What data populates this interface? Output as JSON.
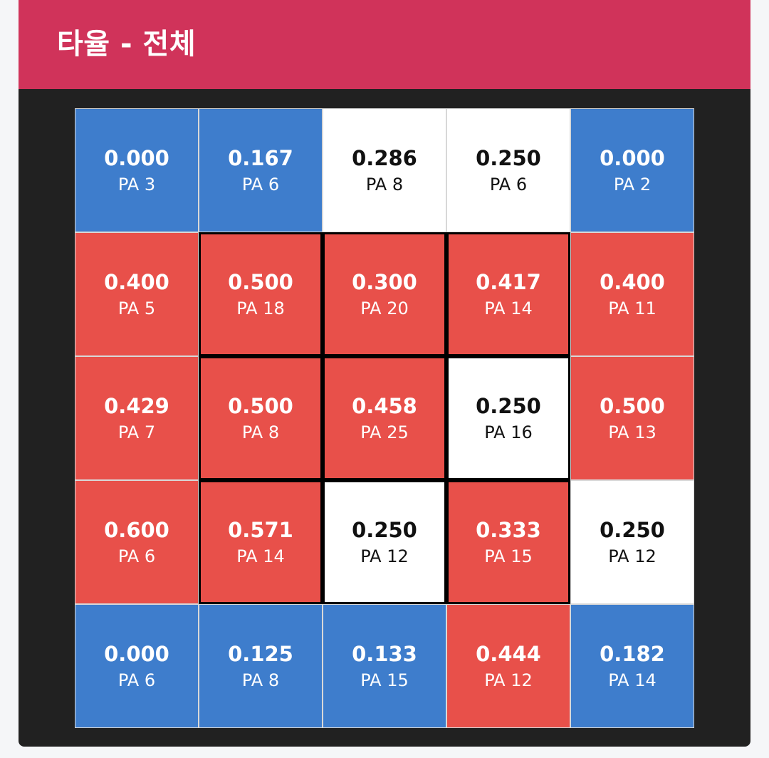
{
  "header": {
    "title": "타율 - 전체"
  },
  "colors": {
    "header_bg": "#d0335a",
    "panel_bg": "#212121",
    "hot": "#e8504a",
    "cold": "#3e7dcc",
    "neutral": "#ffffff"
  },
  "zone": {
    "rows": [
      [
        {
          "avg": "0.000",
          "pa": "PA 3",
          "tone": "blue"
        },
        {
          "avg": "0.167",
          "pa": "PA 6",
          "tone": "blue"
        },
        {
          "avg": "0.286",
          "pa": "PA 8",
          "tone": "white"
        },
        {
          "avg": "0.250",
          "pa": "PA 6",
          "tone": "white"
        },
        {
          "avg": "0.000",
          "pa": "PA 2",
          "tone": "blue"
        }
      ],
      [
        {
          "avg": "0.400",
          "pa": "PA 5",
          "tone": "red"
        },
        {
          "avg": "0.500",
          "pa": "PA 18",
          "tone": "red"
        },
        {
          "avg": "0.300",
          "pa": "PA 20",
          "tone": "red"
        },
        {
          "avg": "0.417",
          "pa": "PA 14",
          "tone": "red"
        },
        {
          "avg": "0.400",
          "pa": "PA 11",
          "tone": "red"
        }
      ],
      [
        {
          "avg": "0.429",
          "pa": "PA 7",
          "tone": "red"
        },
        {
          "avg": "0.500",
          "pa": "PA 8",
          "tone": "red"
        },
        {
          "avg": "0.458",
          "pa": "PA 25",
          "tone": "red"
        },
        {
          "avg": "0.250",
          "pa": "PA 16",
          "tone": "white"
        },
        {
          "avg": "0.500",
          "pa": "PA 13",
          "tone": "red"
        }
      ],
      [
        {
          "avg": "0.600",
          "pa": "PA 6",
          "tone": "red"
        },
        {
          "avg": "0.571",
          "pa": "PA 14",
          "tone": "red"
        },
        {
          "avg": "0.250",
          "pa": "PA 12",
          "tone": "white"
        },
        {
          "avg": "0.333",
          "pa": "PA 15",
          "tone": "red"
        },
        {
          "avg": "0.250",
          "pa": "PA 12",
          "tone": "white"
        }
      ],
      [
        {
          "avg": "0.000",
          "pa": "PA 6",
          "tone": "blue"
        },
        {
          "avg": "0.125",
          "pa": "PA 8",
          "tone": "blue"
        },
        {
          "avg": "0.133",
          "pa": "PA 15",
          "tone": "blue"
        },
        {
          "avg": "0.444",
          "pa": "PA 12",
          "tone": "red"
        },
        {
          "avg": "0.182",
          "pa": "PA 14",
          "tone": "blue"
        }
      ]
    ]
  }
}
